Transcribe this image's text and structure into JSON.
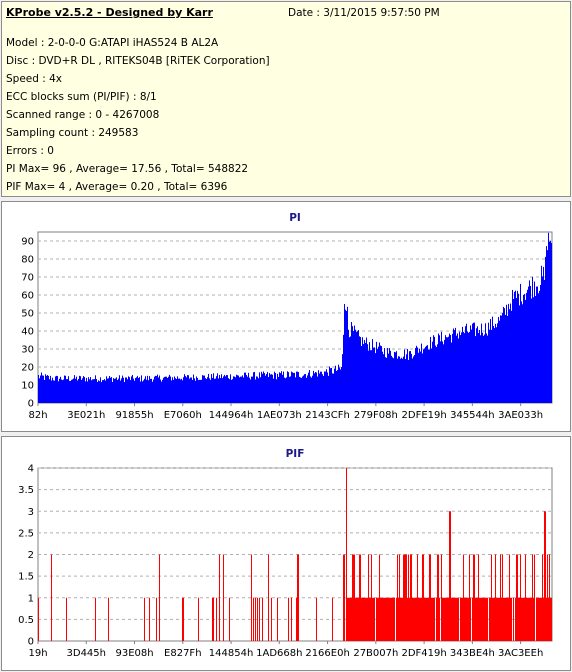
{
  "header": {
    "title": "KProbe v2.5.2 - Designed by Karr",
    "date": "Date : 3/11/2015 9:57:50 PM"
  },
  "info": {
    "model": "Model : 2-0-0-0 G:ATAPI  iHAS524   B      AL2A",
    "disc": "Disc : DVD+R DL , RITEKS04B [RiTEK Corporation]",
    "speed": "Speed : 4x",
    "ecc": "ECC blocks sum (PI/PIF) : 8/1",
    "range": "Scanned range : 0 - 4267008",
    "sampling": "Sampling count : 249583",
    "errors": "Errors : 0",
    "pi_summary": "PI Max= 96 , Average= 17.56 , Total= 548822",
    "pif_summary": "PIF Max= 4 , Average= 0.20 , Total= 6396"
  },
  "colors": {
    "pi_bar": "#0000ff",
    "pif_bar": "#ff0000",
    "panel": "#ffffe1",
    "title": "#1a1a8c"
  },
  "chart_data": [
    {
      "type": "bar",
      "title": "PI",
      "ylim": [
        0,
        95
      ],
      "yticks": [
        0,
        10,
        20,
        30,
        40,
        50,
        60,
        70,
        80,
        90
      ],
      "xticks": [
        "82h",
        "3E021h",
        "91855h",
        "E7060h",
        "144964h",
        "1AE073h",
        "2143CFh",
        "279F08h",
        "2DFE19h",
        "345544h",
        "3AE033h"
      ],
      "grid": true,
      "max": 96,
      "average": 17.56,
      "total": 548822,
      "profile": [
        [
          0.0,
          14,
          5
        ],
        [
          0.03,
          13,
          4
        ],
        [
          0.2,
          13,
          4
        ],
        [
          0.35,
          14,
          4
        ],
        [
          0.5,
          15,
          5
        ],
        [
          0.55,
          16,
          5
        ],
        [
          0.59,
          18,
          6
        ],
        [
          0.595,
          45,
          12
        ],
        [
          0.605,
          40,
          10
        ],
        [
          0.63,
          33,
          8
        ],
        [
          0.68,
          27,
          7
        ],
        [
          0.72,
          26,
          7
        ],
        [
          0.76,
          32,
          8
        ],
        [
          0.82,
          38,
          9
        ],
        [
          0.87,
          40,
          9
        ],
        [
          0.9,
          45,
          10
        ],
        [
          0.92,
          55,
          12
        ],
        [
          0.96,
          63,
          14
        ],
        [
          1.0,
          70,
          18
        ]
      ]
    },
    {
      "type": "bar",
      "title": "PIF",
      "ylim": [
        0,
        4
      ],
      "yticks": [
        0,
        0.5,
        1,
        1.5,
        2,
        2.5,
        3,
        3.5,
        4
      ],
      "ytick_labels": [
        "0",
        "0.5",
        "1",
        "1.5",
        "2",
        "2.5",
        "3",
        "3.5",
        "4"
      ],
      "xticks": [
        "19h",
        "3D445h",
        "93E08h",
        "E827Fh",
        "144854h",
        "1AD668h",
        "2166E0h",
        "27B007h",
        "2DF419h",
        "343BE4h",
        "3AC3EEh"
      ],
      "grid": true,
      "max": 4,
      "average": 0.2,
      "total": 6396
    }
  ]
}
